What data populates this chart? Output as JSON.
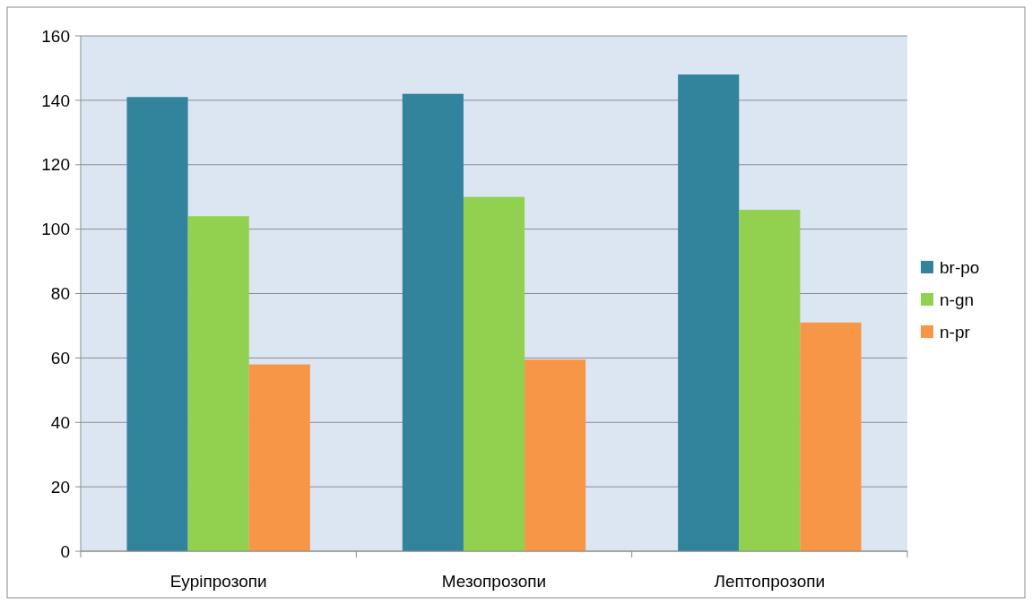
{
  "chart_data": {
    "type": "bar",
    "categories": [
      "Еурiпрозопи",
      "Мезопрозопи",
      "Лептопрозопи"
    ],
    "series": [
      {
        "name": "br-po",
        "color": "#31849b",
        "values": [
          141,
          142,
          148
        ]
      },
      {
        "name": "n-gn",
        "color": "#92d050",
        "values": [
          104,
          110,
          106
        ]
      },
      {
        "name": "n-pr",
        "color": "#f79646",
        "values": [
          58,
          59.5,
          71
        ]
      }
    ],
    "ylim": [
      0,
      160
    ],
    "yticks": [
      0,
      20,
      40,
      60,
      80,
      100,
      120,
      140,
      160
    ],
    "grid": "y",
    "legend": "right"
  }
}
